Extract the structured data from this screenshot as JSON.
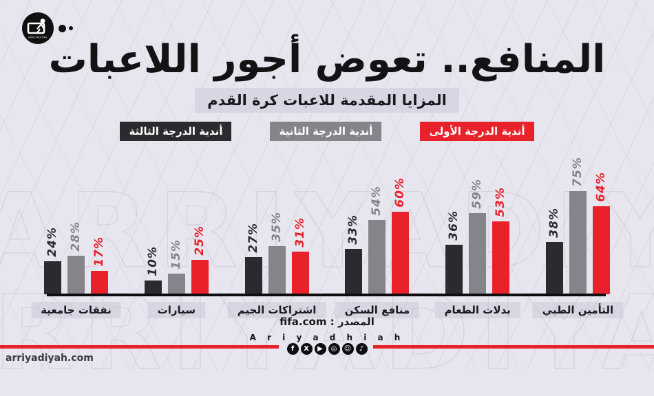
{
  "header": {
    "title": "المنافع.. تعوض أجور اللاعبات",
    "subtitle": "المزايا المقدمة للاعبات كرة القدم"
  },
  "legend": [
    {
      "label": "أندية الدرجة الثالثة",
      "color": "#2b2a2f"
    },
    {
      "label": "أندية الدرجة الثانية",
      "color": "#85848a"
    },
    {
      "label": "أندية الدرجة الأولى",
      "color": "#e8212b"
    }
  ],
  "chart_data": {
    "type": "bar",
    "direction": "rtl",
    "unit": "%",
    "title": "المزايا المقدمة للاعبات كرة القدم",
    "categories": [
      "التأمين الطبي",
      "بدلات الطعام",
      "منافع السكن",
      "اشتراكات الجيم",
      "سيارات",
      "نفقات جامعية"
    ],
    "series": [
      {
        "name": "أندية الدرجة الثالثة",
        "color": "#2b2a2f",
        "values": [
          38,
          36,
          33,
          27,
          10,
          24
        ]
      },
      {
        "name": "أندية الدرجة الثانية",
        "color": "#85848a",
        "values": [
          75,
          59,
          54,
          35,
          15,
          28
        ]
      },
      {
        "name": "أندية الدرجة الأولى",
        "color": "#e8212b",
        "values": [
          64,
          53,
          60,
          31,
          25,
          17
        ]
      }
    ],
    "value_labels": true,
    "ylim": [
      0,
      80
    ],
    "legend_position": "top",
    "grid": false
  },
  "footer": {
    "source_label": "المصدر",
    "source_value": "fifa.com",
    "brand": "A r i y a d h i a h",
    "social_icons": [
      {
        "name": "facebook-icon",
        "glyph": "f"
      },
      {
        "name": "x-icon",
        "glyph": "X"
      },
      {
        "name": "youtube-icon",
        "glyph": "▶"
      },
      {
        "name": "instagram-icon",
        "glyph": "◎"
      },
      {
        "name": "snapchat-icon",
        "glyph": "☺"
      },
      {
        "name": "tiktok-icon",
        "glyph": "♪"
      }
    ],
    "website": "arriyadiyah.com"
  },
  "watermark": "ARRIYADIYAH",
  "colors": {
    "background": "#e7e6ee",
    "accent_red": "#e8212b",
    "bar_dark": "#2b2a2f",
    "bar_gray": "#85848a",
    "axis": "#0d0d10"
  }
}
